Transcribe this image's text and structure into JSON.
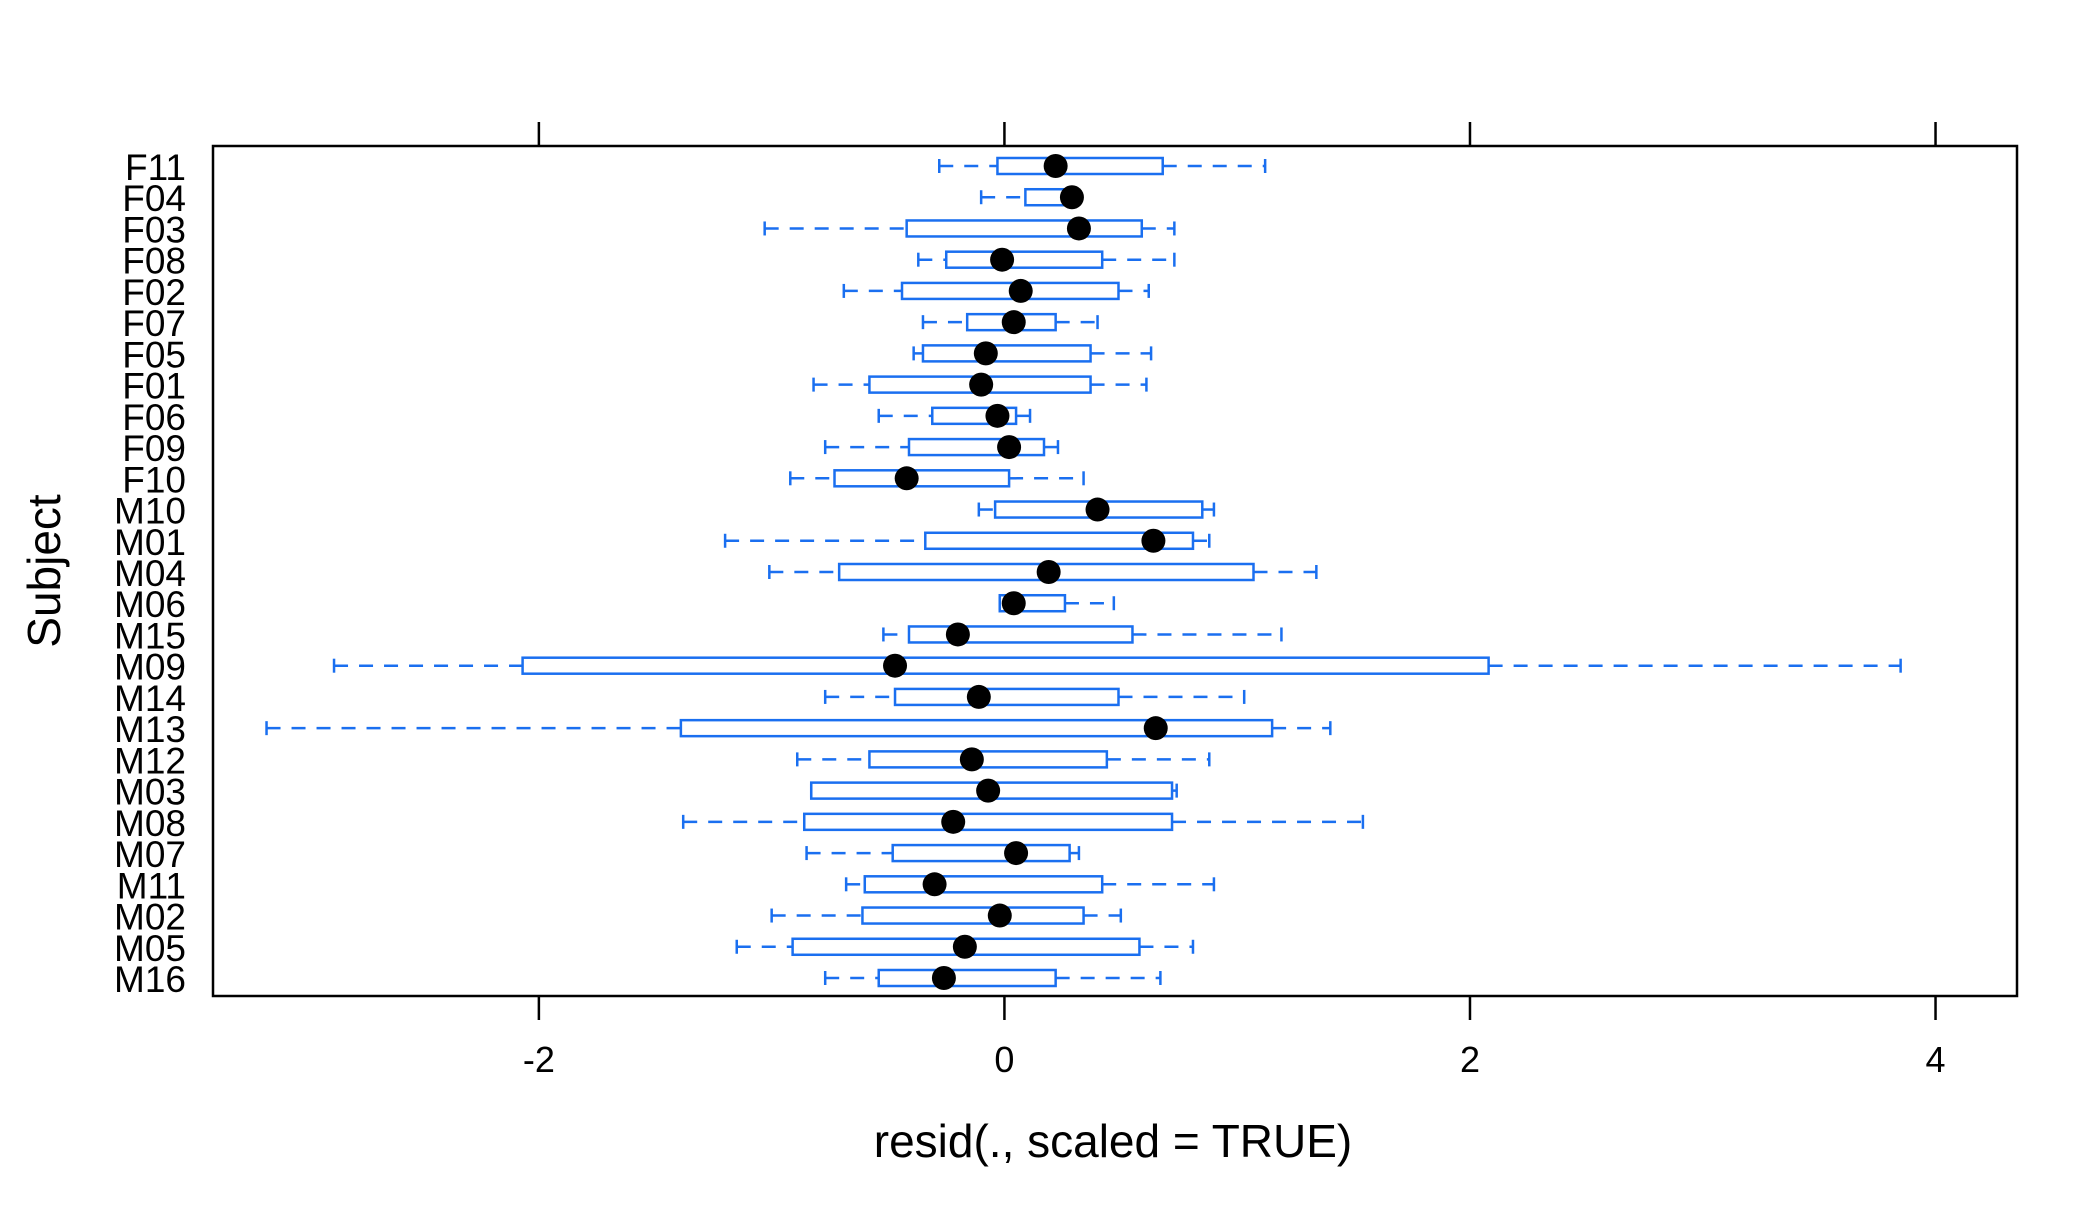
{
  "chart_data": {
    "type": "boxplot",
    "orientation": "horizontal",
    "xlabel": "resid(., scaled = TRUE)",
    "ylabel": "Subject",
    "xlim": [
      -3.4,
      4.35
    ],
    "x_ticks": [
      -2,
      0,
      2,
      4
    ],
    "x_tick_labels": [
      "-2",
      "0",
      "2",
      "4"
    ],
    "grid": false,
    "colors": {
      "box": "#1a6ff0",
      "median": "#000000",
      "frame": "#000000"
    },
    "boxes": [
      {
        "subject": "F11",
        "whisker_low": -0.28,
        "q1": -0.03,
        "median": 0.22,
        "q3": 0.68,
        "whisker_high": 1.12
      },
      {
        "subject": "F04",
        "whisker_low": -0.1,
        "q1": 0.09,
        "median": 0.29,
        "q3": 0.29,
        "whisker_high": 0.29
      },
      {
        "subject": "F03",
        "whisker_low": -1.03,
        "q1": -0.42,
        "median": 0.32,
        "q3": 0.59,
        "whisker_high": 0.73
      },
      {
        "subject": "F08",
        "whisker_low": -0.37,
        "q1": -0.25,
        "median": -0.01,
        "q3": 0.42,
        "whisker_high": 0.73
      },
      {
        "subject": "F02",
        "whisker_low": -0.69,
        "q1": -0.44,
        "median": 0.07,
        "q3": 0.49,
        "whisker_high": 0.62
      },
      {
        "subject": "F07",
        "whisker_low": -0.35,
        "q1": -0.16,
        "median": 0.04,
        "q3": 0.22,
        "whisker_high": 0.4
      },
      {
        "subject": "F05",
        "whisker_low": -0.39,
        "q1": -0.35,
        "median": -0.08,
        "q3": 0.37,
        "whisker_high": 0.63
      },
      {
        "subject": "F01",
        "whisker_low": -0.82,
        "q1": -0.58,
        "median": -0.1,
        "q3": 0.37,
        "whisker_high": 0.61
      },
      {
        "subject": "F06",
        "whisker_low": -0.54,
        "q1": -0.31,
        "median": -0.03,
        "q3": 0.05,
        "whisker_high": 0.11
      },
      {
        "subject": "F09",
        "whisker_low": -0.77,
        "q1": -0.41,
        "median": 0.02,
        "q3": 0.17,
        "whisker_high": 0.23
      },
      {
        "subject": "F10",
        "whisker_low": -0.92,
        "q1": -0.73,
        "median": -0.42,
        "q3": 0.02,
        "whisker_high": 0.34
      },
      {
        "subject": "M10",
        "whisker_low": -0.11,
        "q1": -0.04,
        "median": 0.4,
        "q3": 0.85,
        "whisker_high": 0.9
      },
      {
        "subject": "M01",
        "whisker_low": -1.2,
        "q1": -0.34,
        "median": 0.64,
        "q3": 0.81,
        "whisker_high": 0.88
      },
      {
        "subject": "M04",
        "whisker_low": -1.01,
        "q1": -0.71,
        "median": 0.19,
        "q3": 1.07,
        "whisker_high": 1.34
      },
      {
        "subject": "M06",
        "whisker_low": -0.02,
        "q1": -0.02,
        "median": 0.04,
        "q3": 0.26,
        "whisker_high": 0.47
      },
      {
        "subject": "M15",
        "whisker_low": -0.52,
        "q1": -0.41,
        "median": -0.2,
        "q3": 0.55,
        "whisker_high": 1.19
      },
      {
        "subject": "M09",
        "whisker_low": -2.88,
        "q1": -2.07,
        "median": -0.47,
        "q3": 2.08,
        "whisker_high": 3.85
      },
      {
        "subject": "M14",
        "whisker_low": -0.77,
        "q1": -0.47,
        "median": -0.11,
        "q3": 0.49,
        "whisker_high": 1.03
      },
      {
        "subject": "M13",
        "whisker_low": -3.17,
        "q1": -1.39,
        "median": 0.65,
        "q3": 1.15,
        "whisker_high": 1.4
      },
      {
        "subject": "M12",
        "whisker_low": -0.89,
        "q1": -0.58,
        "median": -0.14,
        "q3": 0.44,
        "whisker_high": 0.88
      },
      {
        "subject": "M03",
        "whisker_low": -0.83,
        "q1": -0.83,
        "median": -0.07,
        "q3": 0.72,
        "whisker_high": 0.74
      },
      {
        "subject": "M08",
        "whisker_low": -1.38,
        "q1": -0.86,
        "median": -0.22,
        "q3": 0.72,
        "whisker_high": 1.54
      },
      {
        "subject": "M07",
        "whisker_low": -0.85,
        "q1": -0.48,
        "median": 0.05,
        "q3": 0.28,
        "whisker_high": 0.32
      },
      {
        "subject": "M11",
        "whisker_low": -0.68,
        "q1": -0.6,
        "median": -0.3,
        "q3": 0.42,
        "whisker_high": 0.9
      },
      {
        "subject": "M02",
        "whisker_low": -1.0,
        "q1": -0.61,
        "median": -0.02,
        "q3": 0.34,
        "whisker_high": 0.5
      },
      {
        "subject": "M05",
        "whisker_low": -1.15,
        "q1": -0.91,
        "median": -0.17,
        "q3": 0.58,
        "whisker_high": 0.81
      },
      {
        "subject": "M16",
        "whisker_low": -0.77,
        "q1": -0.54,
        "median": -0.26,
        "q3": 0.22,
        "whisker_high": 0.67
      }
    ]
  }
}
